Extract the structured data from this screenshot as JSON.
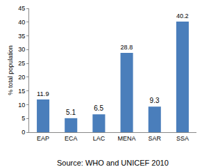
{
  "chart_data": {
    "type": "bar",
    "categories": [
      "EAP",
      "ECA",
      "LAC",
      "MENA",
      "SAR",
      "SSA"
    ],
    "values": [
      11.9,
      5.1,
      6.5,
      28.8,
      9.3,
      40.2
    ],
    "color": "#4a7ebb",
    "ylabel": "% total population",
    "ylim": [
      0,
      45
    ],
    "yticks": [
      0,
      5,
      10,
      15,
      20,
      25,
      30,
      35,
      40,
      45
    ],
    "grid": false,
    "data_labels": true,
    "annotation": "Source: WHO and UNICEF 2010"
  }
}
